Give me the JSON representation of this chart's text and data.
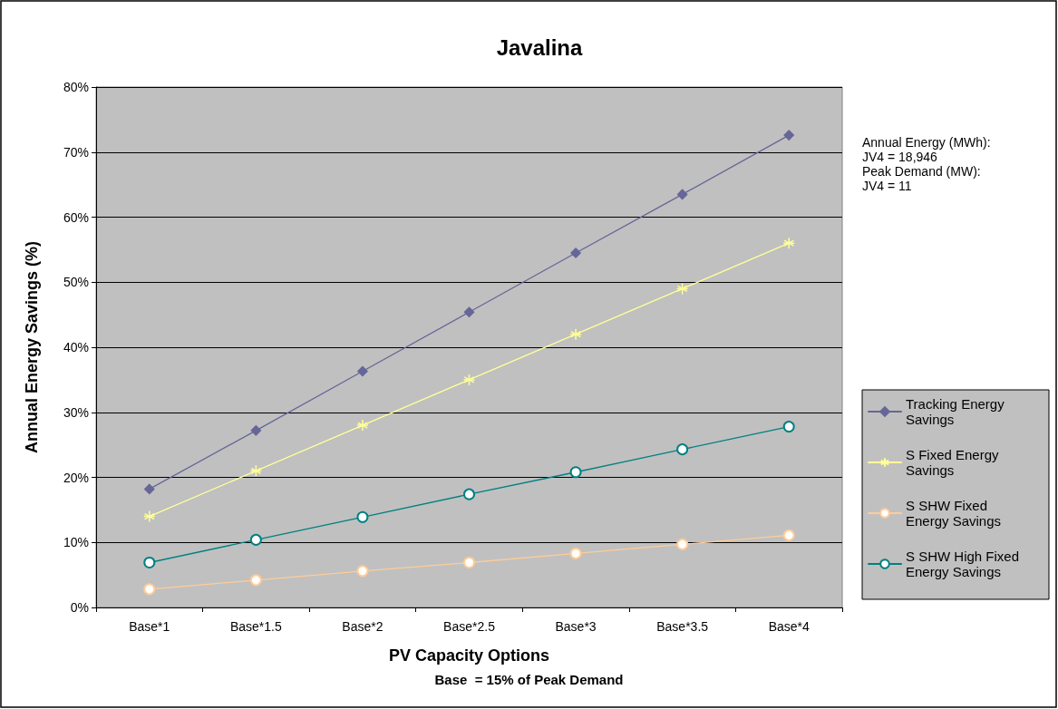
{
  "chart_data": {
    "type": "line",
    "title": "Javalina",
    "xlabel": "PV Capacity Options",
    "ylabel": "Annual Energy Savings (%)",
    "categories": [
      "Base*1",
      "Base*1.5",
      "Base*2",
      "Base*2.5",
      "Base*3",
      "Base*3.5",
      "Base*4"
    ],
    "series": [
      {
        "name": "Tracking Energy Savings",
        "color": "#666699",
        "marker": "diamond",
        "values": [
          18.2,
          27.2,
          36.3,
          45.4,
          54.5,
          63.5,
          72.6
        ]
      },
      {
        "name": "S Fixed Energy Savings",
        "color": "#ffff99",
        "marker": "cross",
        "values": [
          14,
          21,
          28,
          35,
          42,
          49,
          56
        ]
      },
      {
        "name": "S SHW Fixed Energy Savings",
        "color": "#ffcc99",
        "marker": "circle",
        "values": [
          2.8,
          4.2,
          5.6,
          6.9,
          8.3,
          9.7,
          11.1
        ]
      },
      {
        "name": "S SHW High Fixed Energy Savings",
        "color": "#008080",
        "marker": "circle",
        "values": [
          6.9,
          10.4,
          13.9,
          17.4,
          20.8,
          24.3,
          27.8
        ]
      }
    ],
    "ylim": [
      0,
      80
    ],
    "yticks": [
      {
        "value": 0,
        "label": "0%"
      },
      {
        "value": 10,
        "label": "10%"
      },
      {
        "value": 20,
        "label": "20%"
      },
      {
        "value": 30,
        "label": "30%"
      },
      {
        "value": 40,
        "label": "40%"
      },
      {
        "value": 50,
        "label": "50%"
      },
      {
        "value": 60,
        "label": "60%"
      },
      {
        "value": 70,
        "label": "70%"
      },
      {
        "value": 80,
        "label": "80%"
      }
    ],
    "grid": "y",
    "legend": "right",
    "line_style": "solid",
    "annotations": [
      "Annual Energy (MWh):",
      "JV4 = 18,946",
      "Peak Demand (MW):",
      "JV4 = 11",
      "Base  = 15% of Peak Demand"
    ]
  }
}
